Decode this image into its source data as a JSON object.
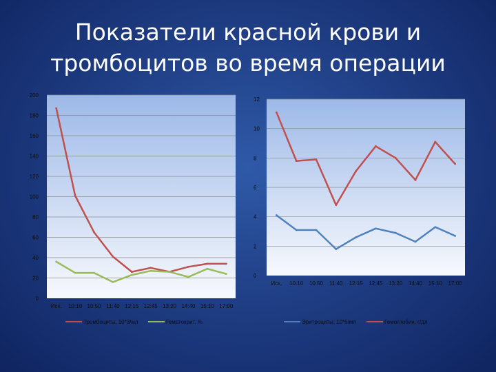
{
  "slide": {
    "title_line1": "Показатели красной крови и",
    "title_line2": "тромбоцитов во время операции"
  },
  "chart_data": [
    {
      "type": "line",
      "categories": [
        "Исх.",
        "10:10",
        "10:50",
        "11:40",
        "12:15",
        "12:45",
        "13:20",
        "14:40",
        "15:10",
        "17:00"
      ],
      "ylim": [
        0,
        200
      ],
      "yticks": [
        "0",
        "20",
        "40",
        "60",
        "80",
        "100",
        "120",
        "140",
        "160",
        "180",
        "200"
      ],
      "grid": true,
      "legend_position": "bottom",
      "series": [
        {
          "name": "Тромбоциты, 10*3/мл",
          "color": "#c0504d",
          "values": [
            187,
            101,
            65,
            41,
            26,
            30,
            26,
            31,
            34,
            34
          ]
        },
        {
          "name": "Гематокрит, %",
          "color": "#9bbb59",
          "values": [
            36,
            25,
            25,
            16,
            23,
            27,
            26,
            21,
            29,
            24
          ]
        }
      ]
    },
    {
      "type": "line",
      "categories": [
        "Исх.",
        "10:10",
        "10:50",
        "11:40",
        "12:15",
        "12:45",
        "13:20",
        "14:40",
        "15:10",
        "17:00"
      ],
      "ylim": [
        0,
        12
      ],
      "yticks": [
        "0",
        "2",
        "4",
        "6",
        "8",
        "10",
        "12"
      ],
      "grid": true,
      "legend_position": "bottom",
      "series": [
        {
          "name": "Эритроциты, 10*6/мл",
          "color": "#4f81bd",
          "values": [
            4.1,
            3.1,
            3.1,
            1.8,
            2.6,
            3.2,
            2.9,
            2.3,
            3.3,
            2.7
          ]
        },
        {
          "name": "Гемоглобин, г/дл",
          "color": "#c0504d",
          "values": [
            11.1,
            7.8,
            7.9,
            4.8,
            7.1,
            8.8,
            8.0,
            6.5,
            9.1,
            7.6
          ]
        }
      ]
    }
  ]
}
